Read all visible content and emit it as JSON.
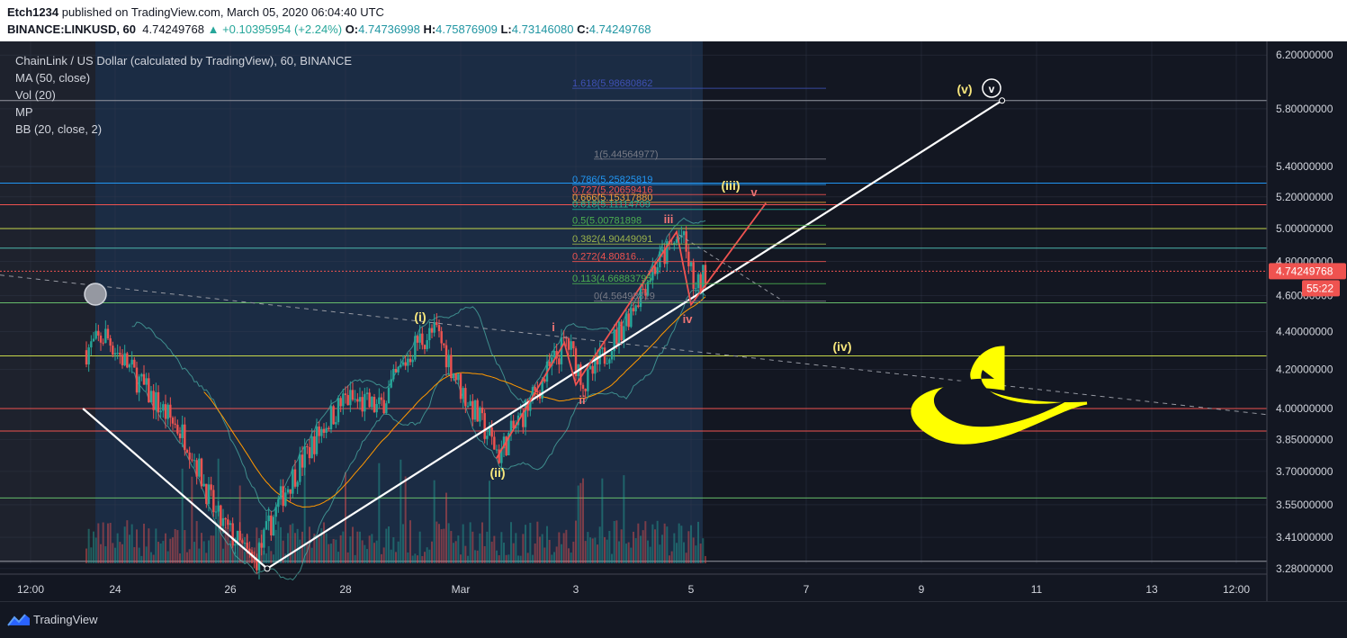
{
  "header": {
    "author": "Etch1234",
    "published_text": "published on TradingView.com, March 05, 2020 06:04:40 UTC",
    "symbol": "BINANCE:LINKUSD, 60",
    "price": "4.74249768",
    "change_arrow": "▲",
    "change": "+0.10395954 (+2.24%)",
    "o_label": "O:",
    "o_value": "4.74736998",
    "h_label": "H:",
    "h_value": "4.75876909",
    "l_label": "L:",
    "l_value": "4.73146080",
    "c_label": "C:",
    "c_value": "4.74249768"
  },
  "legend": {
    "title": "ChainLink / US Dollar (calculated by TradingView), 60, BINANCE",
    "indicators": [
      "MA (50, close)",
      "Vol (20)",
      "MP",
      "BB (20, close, 2)"
    ]
  },
  "footer": {
    "brand": "TradingView"
  },
  "colors": {
    "background": "#131722",
    "up_candle": "#26a69a",
    "down_candle": "#ef5350",
    "trendline": "#ffffff",
    "wave_label": "#f7e67c",
    "sub_wave_label": "#ef7575",
    "last_price": "#ef5350"
  },
  "chart_data": {
    "type": "candlestick",
    "x_ticks": [
      "12:00",
      "24",
      "26",
      "28",
      "Mar",
      "3",
      "5",
      "7",
      "9",
      "11",
      "13",
      "12:00"
    ],
    "y_ticks": [
      "6.20000000",
      "5.80000000",
      "5.40000000",
      "5.20000000",
      "5.00000000",
      "4.80000000",
      "4.60000000",
      "4.40000000",
      "4.20000000",
      "4.00000000",
      "3.85000000",
      "3.70000000",
      "3.55000000",
      "3.41000000",
      "3.28000000"
    ],
    "y_scale": "log",
    "last_price_label": "4.74249768",
    "countdown_label": "55:22",
    "price_path_anchors": [
      {
        "x": "Feb 23 12:00",
        "y": 4.3
      },
      {
        "x": "Feb 23 20:00",
        "y": 4.38
      },
      {
        "x": "Feb 24 12:00",
        "y": 4.1
      },
      {
        "x": "Feb 25 06:00",
        "y": 3.85
      },
      {
        "x": "Feb 25 18:00",
        "y": 3.5
      },
      {
        "x": "Feb 26 10:00",
        "y": 3.3
      },
      {
        "x": "Feb 26 22:00",
        "y": 3.6
      },
      {
        "x": "Feb 27 14:00",
        "y": 3.9
      },
      {
        "x": "Feb 28 00:00",
        "y": 4.05
      },
      {
        "x": "Feb 28 14:00",
        "y": 4.0
      },
      {
        "x": "Feb 29 06:00",
        "y": 4.35
      },
      {
        "x": "Feb 29 14:00",
        "y": 4.4
      },
      {
        "x": "Mar 01 00:00",
        "y": 4.1
      },
      {
        "x": "Mar 01 16:00",
        "y": 3.78
      },
      {
        "x": "Mar 02 06:00",
        "y": 4.05
      },
      {
        "x": "Mar 02 20:00",
        "y": 4.35
      },
      {
        "x": "Mar 03 04:00",
        "y": 4.12
      },
      {
        "x": "Mar 03 18:00",
        "y": 4.4
      },
      {
        "x": "Mar 04 08:00",
        "y": 4.75
      },
      {
        "x": "Mar 04 20:00",
        "y": 4.96
      },
      {
        "x": "Mar 05 02:00",
        "y": 4.62
      },
      {
        "x": "Mar 05 06:00",
        "y": 4.74
      }
    ],
    "fib_labels": [
      {
        "text": "1.618(5.98680862",
        "color": "#3f51b5"
      },
      {
        "text": "1(5.44564977)",
        "color": "#787b86"
      },
      {
        "text": "0.786(5.25825819",
        "color": "#2196f3"
      },
      {
        "text": "0.727(5.20659416",
        "color": "#ef5350"
      },
      {
        "text": "0.666(5.15317880",
        "color": "#f2a13a"
      },
      {
        "text": "0.618(5.11114709",
        "color": "#22ab94"
      },
      {
        "text": "0.5(5.00781898",
        "color": "#4caf50"
      },
      {
        "text": "0.382(4.90449091",
        "color": "#9bb34b"
      },
      {
        "text": "0.272(4.80816...",
        "color": "#ef5350"
      },
      {
        "text": "0.113(4.66883795",
        "color": "#4caf50"
      },
      {
        "text": "0(4.56498819",
        "color": "#787b86"
      }
    ],
    "wave_labels": [
      {
        "text": "(i)",
        "color": "#f7e67c"
      },
      {
        "text": "(ii)",
        "color": "#f7e67c"
      },
      {
        "text": "(iii)",
        "color": "#f7e67c"
      },
      {
        "text": "(iv)",
        "color": "#f7e67c"
      },
      {
        "text": "(v)",
        "color": "#f7e67c"
      },
      {
        "text": "v",
        "color": "#ffffff"
      },
      {
        "text": "i",
        "color": "#ef7575"
      },
      {
        "text": "ii",
        "color": "#ef7575"
      },
      {
        "text": "iii",
        "color": "#ef7575"
      },
      {
        "text": "iv",
        "color": "#ef7575"
      },
      {
        "text": "v",
        "color": "#ef7575"
      }
    ]
  }
}
